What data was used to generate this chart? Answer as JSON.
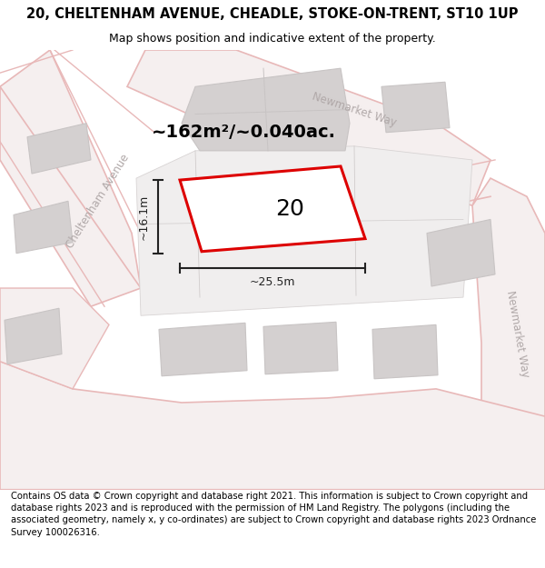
{
  "title": "20, CHELTENHAM AVENUE, CHEADLE, STOKE-ON-TRENT, ST10 1UP",
  "subtitle": "Map shows position and indicative extent of the property.",
  "footer": "Contains OS data © Crown copyright and database right 2021. This information is subject to Crown copyright and database rights 2023 and is reproduced with the permission of HM Land Registry. The polygons (including the associated geometry, namely x, y co-ordinates) are subject to Crown copyright and database rights 2023 Ordnance Survey 100026316.",
  "area_label": "~162m²/~0.040ac.",
  "width_label": "~25.5m",
  "height_label": "~16.1m",
  "number_label": "20",
  "map_bg": "#eeecec",
  "road_fill": "#f5efef",
  "road_line": "#e8b8b8",
  "building_fill": "#d4d0d0",
  "building_edge": "#c8c4c4",
  "property_fill": "#ffffff",
  "property_outline": "#dd0000",
  "road_label_color": "#b0a8a8",
  "dim_color": "#222222",
  "title_fontsize": 10.5,
  "subtitle_fontsize": 9,
  "footer_fontsize": 7.2,
  "number_fontsize": 18
}
